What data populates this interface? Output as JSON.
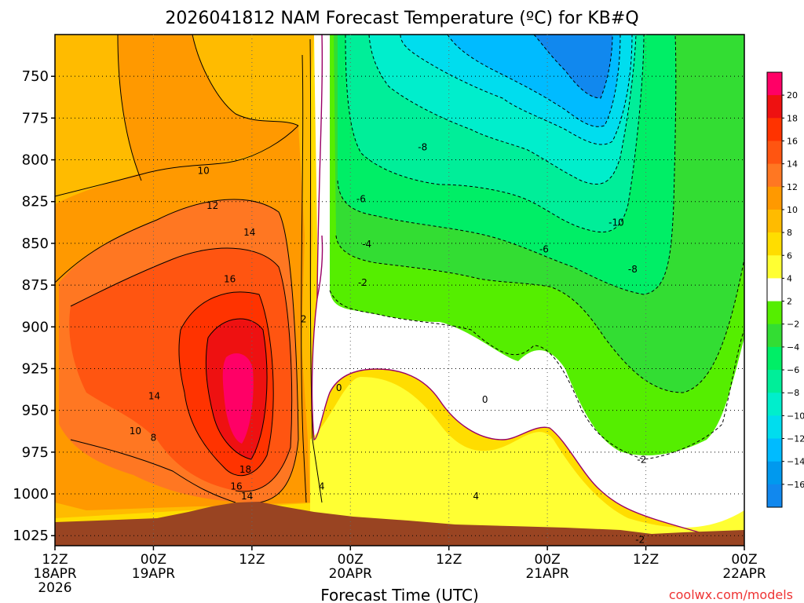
{
  "chart_data": {
    "type": "heatmap",
    "title": "2026041812 NAM Forecast Temperature (ºC) for KB#Q",
    "xlabel": "Forecast Time (UTC)",
    "ylabel": "",
    "credit": "coolwx.com/models",
    "x_ticks": [
      {
        "hour": 0,
        "top": "12Z",
        "mid": "18APR",
        "bot": "2026"
      },
      {
        "hour": 12,
        "top": "00Z",
        "mid": "19APR",
        "bot": ""
      },
      {
        "hour": 24,
        "top": "12Z",
        "mid": "",
        "bot": ""
      },
      {
        "hour": 36,
        "top": "00Z",
        "mid": "20APR",
        "bot": ""
      },
      {
        "hour": 48,
        "top": "12Z",
        "mid": "",
        "bot": ""
      },
      {
        "hour": 60,
        "top": "00Z",
        "mid": "21APR",
        "bot": ""
      },
      {
        "hour": 72,
        "top": "12Z",
        "mid": "",
        "bot": ""
      },
      {
        "hour": 84,
        "top": "00Z",
        "mid": "22APR",
        "bot": ""
      }
    ],
    "xlim": [
      0,
      84
    ],
    "ylim": [
      725,
      1031
    ],
    "y_ticks": [
      750,
      775,
      800,
      825,
      850,
      875,
      900,
      925,
      950,
      975,
      1000,
      1025
    ],
    "colorbar": {
      "labels": [
        "20",
        "18",
        "16",
        "14",
        "12",
        "10",
        "8",
        "6",
        "4",
        "2",
        "−2",
        "−4",
        "−6",
        "−8",
        "−10",
        "−12",
        "−14",
        "−16"
      ],
      "colors": [
        "#ff0066",
        "#ee1111",
        "#ff3300",
        "#ff5511",
        "#ff7722",
        "#ff9900",
        "#ffbb00",
        "#ffdd00",
        "#ffff33",
        "#ffffff",
        "#55ee00",
        "#33dd33",
        "#00ee66",
        "#00ee99",
        "#00eecc",
        "#00ddee",
        "#00bbff",
        "#0099ee",
        "#1188ee"
      ]
    },
    "contour_labels": [
      {
        "text": "10",
        "hour": 18.1,
        "p": 806
      },
      {
        "text": "12",
        "hour": 19.2,
        "p": 827
      },
      {
        "text": "14",
        "hour": 23.7,
        "p": 843
      },
      {
        "text": "16",
        "hour": 21.3,
        "p": 871
      },
      {
        "text": "14",
        "hour": 12.1,
        "p": 941
      },
      {
        "text": "10",
        "hour": 9.8,
        "p": 962
      },
      {
        "text": "8",
        "hour": 12.0,
        "p": 966
      },
      {
        "text": "18",
        "hour": 23.2,
        "p": 985
      },
      {
        "text": "16",
        "hour": 22.1,
        "p": 995
      },
      {
        "text": "14",
        "hour": 23.4,
        "p": 1001
      },
      {
        "text": "2",
        "hour": 30.3,
        "p": 895
      },
      {
        "text": "4",
        "hour": 32.5,
        "p": 995
      },
      {
        "text": "0",
        "hour": 34.6,
        "p": 936
      },
      {
        "text": "-8",
        "hour": 44.8,
        "p": 792
      },
      {
        "text": "-6",
        "hour": 37.3,
        "p": 823
      },
      {
        "text": "-4",
        "hour": 38.0,
        "p": 850
      },
      {
        "text": "-2",
        "hour": 37.5,
        "p": 873
      },
      {
        "text": "4",
        "hour": 51.3,
        "p": 1001
      },
      {
        "text": "0",
        "hour": 52.4,
        "p": 943
      },
      {
        "text": "-6",
        "hour": 59.6,
        "p": 853
      },
      {
        "text": "-10",
        "hour": 68.4,
        "p": 837
      },
      {
        "text": "-8",
        "hour": 70.4,
        "p": 865
      },
      {
        "text": "-2",
        "hour": 71.5,
        "p": 979
      },
      {
        "text": "-2",
        "hour": 71.3,
        "p": 1027
      }
    ]
  }
}
